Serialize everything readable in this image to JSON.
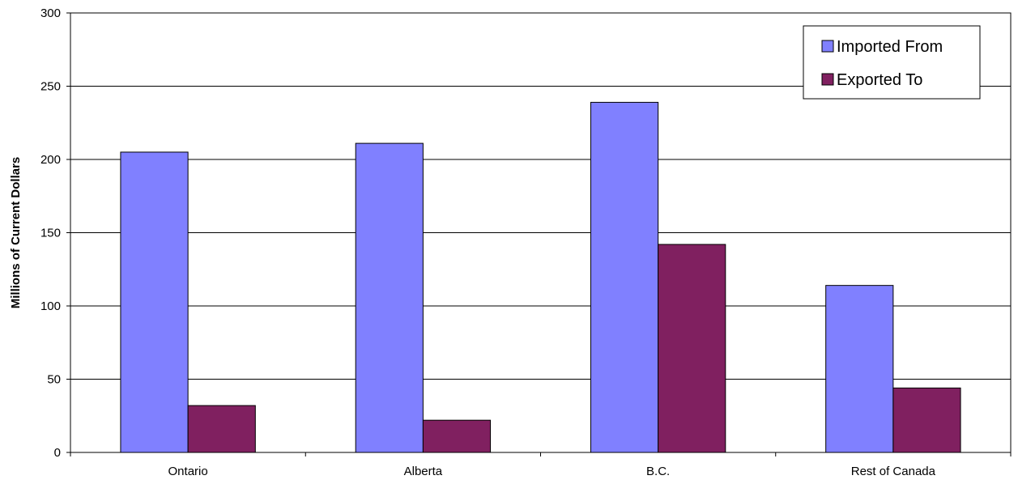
{
  "chart_data": {
    "type": "bar",
    "title": "",
    "xlabel": "",
    "ylabel": "Millions of Current Dollars",
    "categories": [
      "Ontario",
      "Alberta",
      "B.C.",
      "Rest of Canada"
    ],
    "series": [
      {
        "name": "Imported From",
        "values": [
          205,
          211,
          239,
          114
        ],
        "color": "#8080ff"
      },
      {
        "name": "Exported To",
        "values": [
          32,
          22,
          142,
          44
        ],
        "color": "#802060"
      }
    ],
    "ylim": [
      0,
      300
    ],
    "yticks": [
      "0",
      "50",
      "100",
      "150",
      "200",
      "250",
      "300"
    ],
    "grid": true,
    "legend_position": "top-right"
  }
}
